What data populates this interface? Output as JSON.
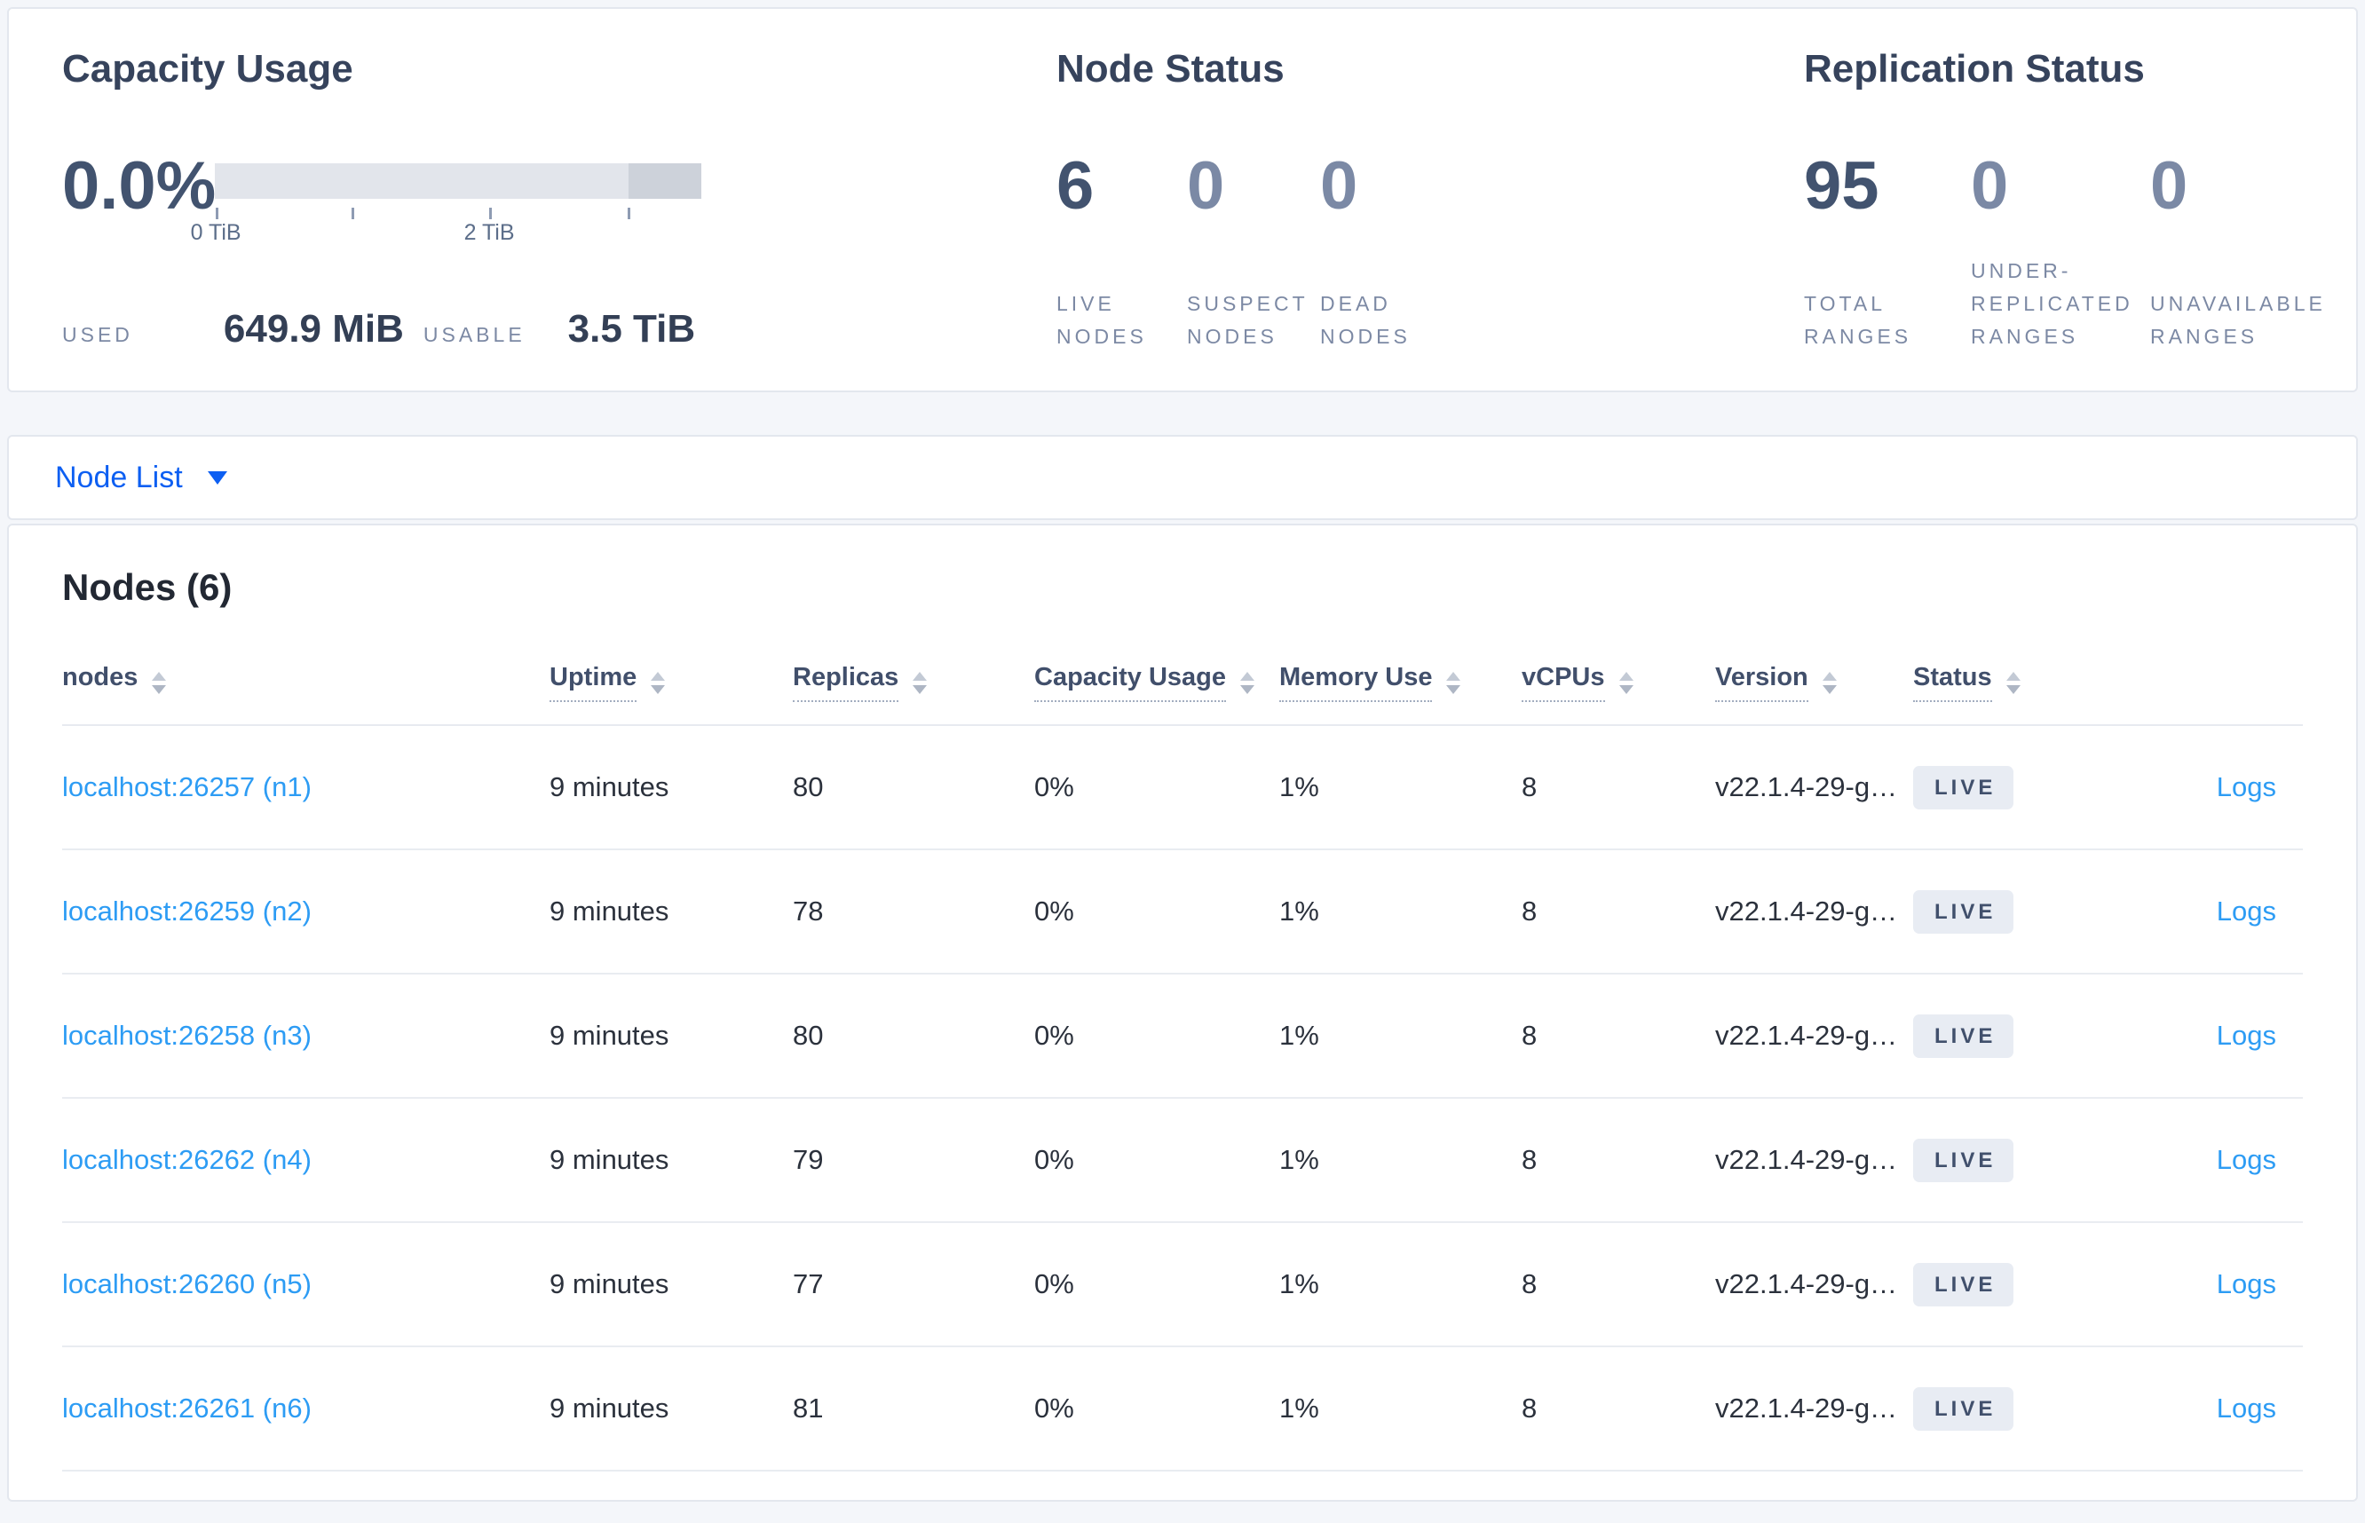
{
  "summary": {
    "capacity": {
      "title": "Capacity Usage",
      "percent": "0.0%",
      "tick_labels": [
        "0 TiB",
        "2 TiB"
      ],
      "used_label": "USED",
      "used_value": "649.9 MiB",
      "usable_label": "USABLE",
      "usable_value": "3.5 TiB"
    },
    "node_status": {
      "title": "Node Status",
      "stats": [
        {
          "value": "6",
          "label": "LIVE NODES"
        },
        {
          "value": "0",
          "label": "SUSPECT NODES"
        },
        {
          "value": "0",
          "label": "DEAD NODES"
        }
      ]
    },
    "replication": {
      "title": "Replication Status",
      "stats": [
        {
          "value": "95",
          "label": "TOTAL RANGES"
        },
        {
          "value": "0",
          "label": "UNDER-REPLICATED RANGES"
        },
        {
          "value": "0",
          "label": "UNAVAILABLE RANGES"
        }
      ]
    }
  },
  "view_selector": {
    "label": "Node List"
  },
  "nodes_table": {
    "title": "Nodes (6)",
    "columns": [
      "nodes",
      "Uptime",
      "Replicas",
      "Capacity Usage",
      "Memory Use",
      "vCPUs",
      "Version",
      "Status"
    ],
    "rows": [
      {
        "node": "localhost:26257 (n1)",
        "uptime": "9 minutes",
        "replicas": "80",
        "capacity": "0%",
        "memory": "1%",
        "vcpus": "8",
        "version": "v22.1.4-29-g…",
        "status": "LIVE",
        "logs": "Logs"
      },
      {
        "node": "localhost:26259 (n2)",
        "uptime": "9 minutes",
        "replicas": "78",
        "capacity": "0%",
        "memory": "1%",
        "vcpus": "8",
        "version": "v22.1.4-29-g…",
        "status": "LIVE",
        "logs": "Logs"
      },
      {
        "node": "localhost:26258 (n3)",
        "uptime": "9 minutes",
        "replicas": "80",
        "capacity": "0%",
        "memory": "1%",
        "vcpus": "8",
        "version": "v22.1.4-29-g…",
        "status": "LIVE",
        "logs": "Logs"
      },
      {
        "node": "localhost:26262 (n4)",
        "uptime": "9 minutes",
        "replicas": "79",
        "capacity": "0%",
        "memory": "1%",
        "vcpus": "8",
        "version": "v22.1.4-29-g…",
        "status": "LIVE",
        "logs": "Logs"
      },
      {
        "node": "localhost:26260 (n5)",
        "uptime": "9 minutes",
        "replicas": "77",
        "capacity": "0%",
        "memory": "1%",
        "vcpus": "8",
        "version": "v22.1.4-29-g…",
        "status": "LIVE",
        "logs": "Logs"
      },
      {
        "node": "localhost:26261 (n6)",
        "uptime": "9 minutes",
        "replicas": "81",
        "capacity": "0%",
        "memory": "1%",
        "vcpus": "8",
        "version": "v22.1.4-29-g…",
        "status": "LIVE",
        "logs": "Logs"
      }
    ]
  },
  "colors": {
    "page_background": "#f4f6fa",
    "primary_blue": "#0d5ff2",
    "link_blue": "#2d9cf4",
    "stat_dark": "#42536f",
    "stat_light": "#7b89a5",
    "badge_background": "#e8ecf3",
    "badge_text": "#41506c",
    "bar_track": "#e2e5eb",
    "bar_extra": "#cdd2da"
  }
}
